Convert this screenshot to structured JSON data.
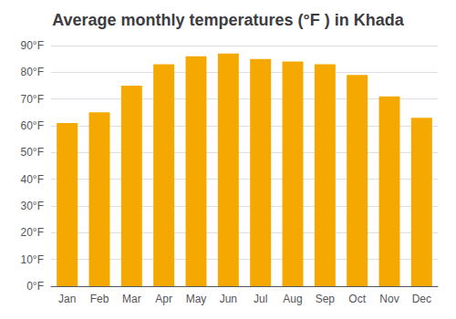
{
  "chart_data": {
    "type": "bar",
    "title": "Average monthly temperatures (°F ) in Khada",
    "categories": [
      "Jan",
      "Feb",
      "Mar",
      "Apr",
      "May",
      "Jun",
      "Jul",
      "Aug",
      "Sep",
      "Oct",
      "Nov",
      "Dec"
    ],
    "values": [
      61,
      65,
      75,
      83,
      86,
      87,
      85,
      84,
      83,
      79,
      71,
      63
    ],
    "color": "#F5A800",
    "ylim": [
      0,
      90
    ],
    "yticks": [
      {
        "value": 0,
        "label": "0°F"
      },
      {
        "value": 10,
        "label": "10°F"
      },
      {
        "value": 20,
        "label": "20°F"
      },
      {
        "value": 30,
        "label": "30°F"
      },
      {
        "value": 40,
        "label": "40°F"
      },
      {
        "value": 50,
        "label": "50°F"
      },
      {
        "value": 60,
        "label": "60°F"
      },
      {
        "value": 70,
        "label": "70°F"
      },
      {
        "value": 80,
        "label": "80°F"
      },
      {
        "value": 90,
        "label": "90°F"
      }
    ],
    "grid": true
  }
}
